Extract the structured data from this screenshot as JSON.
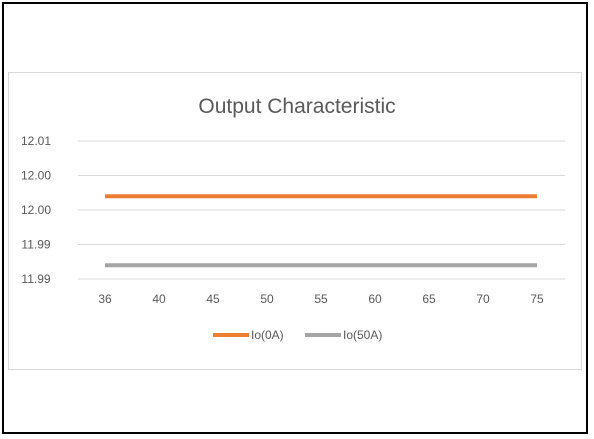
{
  "chart_data": {
    "type": "line",
    "title": "Output Characteristic",
    "xlabel": "",
    "ylabel": "",
    "categories": [
      "36",
      "40",
      "45",
      "50",
      "55",
      "60",
      "65",
      "70",
      "75"
    ],
    "y_tick_labels": [
      "12.01",
      "12.00",
      "12.00",
      "11.99",
      "11.99"
    ],
    "ylim": [
      11.988,
      12.008
    ],
    "grid": true,
    "legend_position": "bottom",
    "series": [
      {
        "name": "Io(0A)",
        "color": "#ed7d31",
        "values": [
          12.0,
          12.0,
          12.0,
          12.0,
          12.0,
          12.0,
          12.0,
          12.0,
          12.0
        ]
      },
      {
        "name": "Io(50A)",
        "color": "#a5a5a5",
        "values": [
          11.99,
          11.99,
          11.99,
          11.99,
          11.99,
          11.99,
          11.99,
          11.99,
          11.99
        ]
      }
    ],
    "colors": {
      "grid": "#d9d9d9",
      "tick_text": "#595959",
      "title_text": "#595959"
    }
  }
}
